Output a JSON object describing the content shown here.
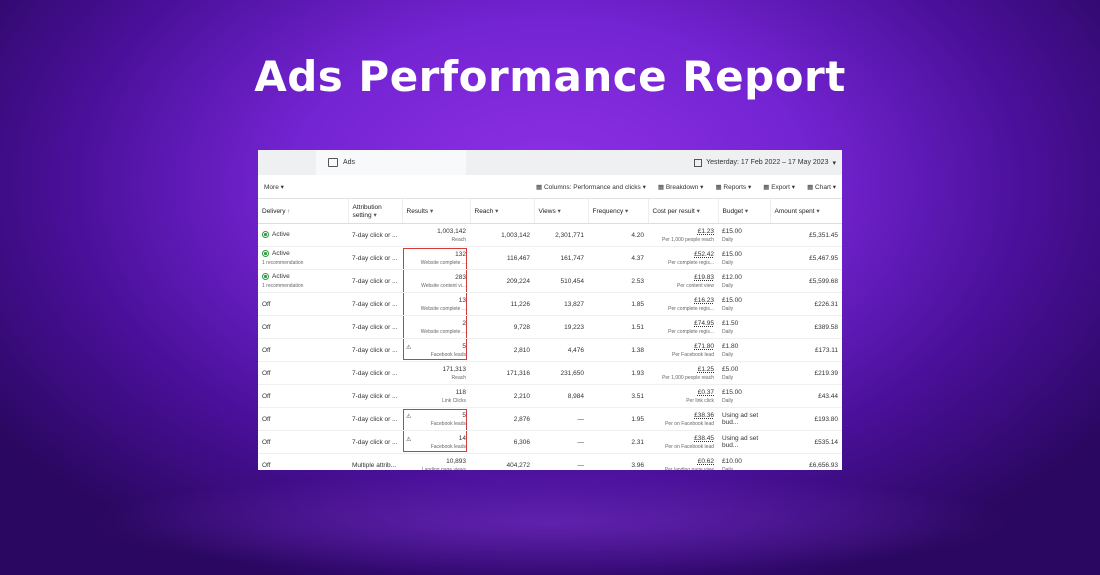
{
  "header": {
    "title": "Ads Performance Report"
  },
  "panel": {
    "tab": "Ads",
    "date_range": "Yesterday: 17 Feb 2022 – 17 May 2023",
    "toolbar_left": "More",
    "toolbar_right": [
      "Columns: Performance and clicks",
      "Breakdown",
      "Reports",
      "Export",
      "Chart"
    ],
    "columns": [
      "Delivery",
      "Attribution setting",
      "Results",
      "Reach",
      "Views",
      "Frequency",
      "Cost per result",
      "Budget",
      "Amount spent"
    ],
    "rows": [
      {
        "on": true,
        "delivery": "Active",
        "attribution": "7-day click or ...",
        "results": "1,003,142",
        "results_label": "Reach",
        "reach": "1,003,142",
        "views": "2,301,771",
        "frequency": "4.20",
        "cost": "£1.23",
        "cost_label": "Per 1,000 people reach",
        "budget": "£15.00",
        "budget_label": "Daily",
        "spent": "£5,351.45"
      },
      {
        "on": true,
        "delivery": "Active",
        "delivery_note": "1 recommendation",
        "attribution": "7-day click or ...",
        "results": "132",
        "results_label": "Website complete ...",
        "reach": "116,467",
        "views": "161,747",
        "frequency": "4.37",
        "cost": "£52.42",
        "cost_label": "Per complete regis...",
        "budget": "£15.00",
        "budget_label": "Daily",
        "spent": "£5,467.95",
        "highlight": true
      },
      {
        "on": true,
        "delivery": "Active",
        "delivery_note": "1 recommendation",
        "attribution": "7-day click or ...",
        "results": "283",
        "results_label": "Website content vi...",
        "reach": "209,224",
        "views": "510,454",
        "frequency": "2.53",
        "cost": "£19.83",
        "cost_label": "Per content view",
        "budget": "£12.00",
        "budget_label": "Daily",
        "spent": "£5,599.68",
        "highlight": true
      },
      {
        "on": false,
        "delivery": "Off",
        "attribution": "7-day click or ...",
        "results": "13",
        "results_label": "Website complete ...",
        "reach": "11,226",
        "views": "13,827",
        "frequency": "1.85",
        "cost": "£16.23",
        "cost_label": "Per complete regis...",
        "budget": "£15.00",
        "budget_label": "Daily",
        "spent": "£226.31",
        "highlight": true
      },
      {
        "on": false,
        "delivery": "Off",
        "attribution": "7-day click or ...",
        "results": "2",
        "results_label": "Website complete ...",
        "reach": "9,728",
        "views": "19,223",
        "frequency": "1.51",
        "cost": "£74.95",
        "cost_label": "Per complete regis...",
        "budget": "£1.50",
        "budget_label": "Daily",
        "spent": "£389.58",
        "highlight": true
      },
      {
        "on": false,
        "delivery": "Off",
        "attribution": "7-day click or ...",
        "results": "5",
        "results_label": "Facebook leads",
        "warning": true,
        "reach": "2,810",
        "views": "4,476",
        "frequency": "1.38",
        "cost": "£71.80",
        "cost_label": "Per Facebook lead",
        "budget": "£1.80",
        "budget_label": "Daily",
        "spent": "£173.11",
        "highlight": true
      },
      {
        "on": false,
        "delivery": "Off",
        "attribution": "7-day click or ...",
        "results": "171,313",
        "results_label": "Reach",
        "reach": "171,316",
        "views": "231,650",
        "frequency": "1.93",
        "cost": "£1.25",
        "cost_label": "Per 1,000 people reach",
        "budget": "£5.00",
        "budget_label": "Daily",
        "spent": "£219.39"
      },
      {
        "on": false,
        "delivery": "Off",
        "attribution": "7-day click or ...",
        "results": "118",
        "results_label": "Link Clicks",
        "reach": "2,210",
        "views": "8,984",
        "frequency": "3.51",
        "cost": "£0.37",
        "cost_label": "Per link click",
        "budget": "£15.00",
        "budget_label": "Daily",
        "spent": "£43.44"
      },
      {
        "on": false,
        "delivery": "Off",
        "attribution": "7-day click or ...",
        "results": "5",
        "results_label": "Facebook leads",
        "warning": true,
        "reach": "2,876",
        "views": "—",
        "frequency": "1.95",
        "cost": "£38.36",
        "cost_label": "Per on Facebook lead",
        "budget": "Using ad set bud...",
        "spent": "£193.80",
        "highlight": true
      },
      {
        "on": false,
        "delivery": "Off",
        "attribution": "7-day click or ...",
        "results": "14",
        "results_label": "Facebook leads",
        "warning": true,
        "reach": "6,306",
        "views": "—",
        "frequency": "2.31",
        "cost": "£38.45",
        "cost_label": "Per on Facebook lead",
        "budget": "Using ad set bud...",
        "spent": "£535.14",
        "highlight": true
      },
      {
        "on": false,
        "delivery": "Off",
        "attribution": "Multiple attrib...",
        "results": "10,893",
        "results_label": "Landing page views",
        "reach": "404,272",
        "views": "—",
        "frequency": "3.96",
        "cost": "£0.62",
        "cost_label": "Per landing page view",
        "budget": "£10.00",
        "budget_label": "Daily",
        "spent": "£6,656.93"
      }
    ]
  }
}
